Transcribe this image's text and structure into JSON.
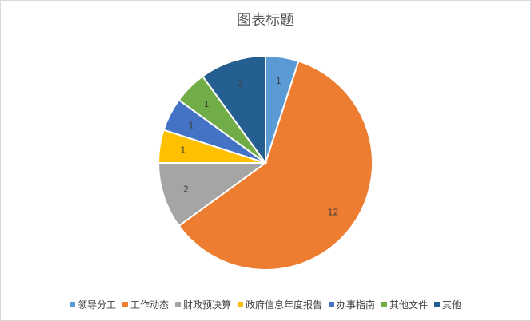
{
  "chart_data": {
    "type": "pie",
    "title": "图表标题",
    "categories": [
      "领导分工",
      "工作动态",
      "财政预决算",
      "政府信息年度报告",
      "办事指南",
      "其他文件",
      "其他"
    ],
    "values": [
      1,
      12,
      2,
      1,
      1,
      1,
      2
    ],
    "colors": [
      "#5b9bd5",
      "#ed7d31",
      "#a5a5a5",
      "#ffc000",
      "#4472c4",
      "#70ad47",
      "#255e91"
    ],
    "data_labels": true,
    "legend": "bottom",
    "start_angle": "top, clockwise"
  }
}
